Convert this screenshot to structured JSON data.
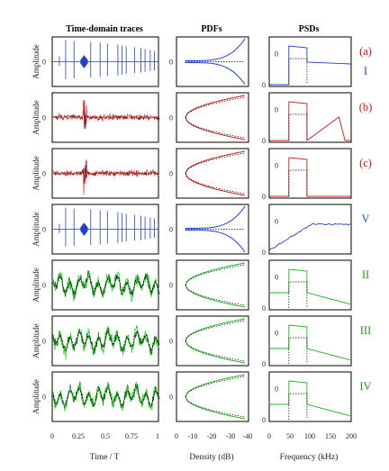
{
  "figure": {
    "col_titles": [
      "Time-domain traces",
      "PDFs",
      "PSDs"
    ],
    "x_labels": [
      "Time / T",
      "Density (dB)",
      "Frequency (kHz)"
    ],
    "y_label_time": "Amplitude",
    "zero_label": "0",
    "time_ticks": [
      "0",
      "0.25",
      "0.5",
      "0.75",
      "1"
    ],
    "density_ticks": [
      "0",
      "-10",
      "-20",
      "-30",
      "-40"
    ],
    "freq_ticks": [
      "0",
      "50",
      "100",
      "150",
      "200"
    ],
    "rows": [
      {
        "label": "(a)",
        "label_color": "#e01010",
        "sub": "I",
        "sub_color": "#2050c0",
        "trace": "blue"
      },
      {
        "label": "(b)",
        "label_color": "#e01010",
        "sub": "",
        "sub_color": "#e01010",
        "trace": "red"
      },
      {
        "label": "(c)",
        "label_color": "#e01010",
        "sub": "",
        "sub_color": "#e01010",
        "trace": "red"
      },
      {
        "label": "V",
        "label_color": "#2050c0",
        "sub": "",
        "sub_color": "#2050c0",
        "trace": "blue"
      },
      {
        "label": "II",
        "label_color": "#20a020",
        "sub": "",
        "sub_color": "#20a020",
        "trace": "green"
      },
      {
        "label": "III",
        "label_color": "#20a020",
        "sub": "",
        "sub_color": "#20a020",
        "trace": "green"
      },
      {
        "label": "IV",
        "label_color": "#20a020",
        "sub": "",
        "sub_color": "#20a020",
        "trace": "green"
      }
    ],
    "colors": {
      "blue": "#2040d0",
      "red": "#d01818",
      "green": "#18b818",
      "black": "#000000"
    }
  }
}
